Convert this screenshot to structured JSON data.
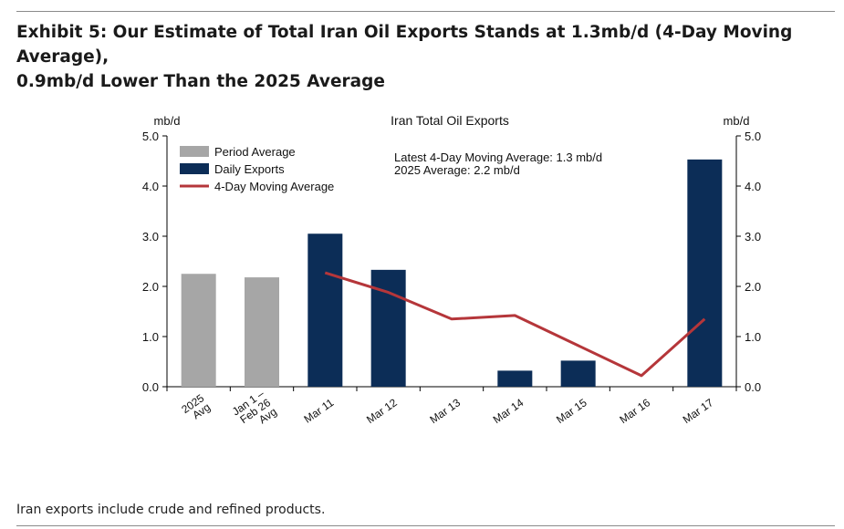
{
  "header": {
    "title_line1": "Exhibit 5: Our Estimate of Total Iran Oil Exports Stands at 1.3mb/d (4-Day Moving Average),",
    "title_line2": "0.9mb/d Lower Than the 2025 Average"
  },
  "footnote": "Iran exports include crude and refined products.",
  "colors": {
    "period_avg": "#a6a6a6",
    "daily": "#0c2d57",
    "moving_avg": "#b5363a"
  },
  "chart_data": {
    "type": "bar",
    "title": "Iran Total Oil Exports",
    "ylabel_left": "mb/d",
    "ylabel_right": "mb/d",
    "ylim": [
      0,
      5
    ],
    "yticks": [
      "0.0",
      "1.0",
      "2.0",
      "3.0",
      "4.0",
      "5.0"
    ],
    "categories": [
      [
        "2025",
        "Avg"
      ],
      [
        "Jan 1 –",
        "Feb 26",
        "Avg"
      ],
      [
        "Mar 11"
      ],
      [
        "Mar 12"
      ],
      [
        "Mar 13"
      ],
      [
        "Mar 14"
      ],
      [
        "Mar 15"
      ],
      [
        "Mar 16"
      ],
      [
        "Mar 17"
      ]
    ],
    "series": [
      {
        "name": "Period Average",
        "kind": "bar",
        "values": [
          2.25,
          2.18,
          null,
          null,
          null,
          null,
          null,
          null,
          null
        ]
      },
      {
        "name": "Daily Exports",
        "kind": "bar",
        "values": [
          null,
          null,
          3.05,
          2.33,
          0,
          0.32,
          0.52,
          0,
          4.53
        ]
      },
      {
        "name": "4-Day Moving Average",
        "kind": "line",
        "values": [
          null,
          null,
          2.27,
          1.88,
          1.35,
          1.42,
          0.82,
          0.22,
          1.35
        ]
      }
    ],
    "annotations": [
      "Latest 4-Day Moving Average: 1.3 mb/d",
      "2025 Average: 2.2 mb/d"
    ]
  }
}
